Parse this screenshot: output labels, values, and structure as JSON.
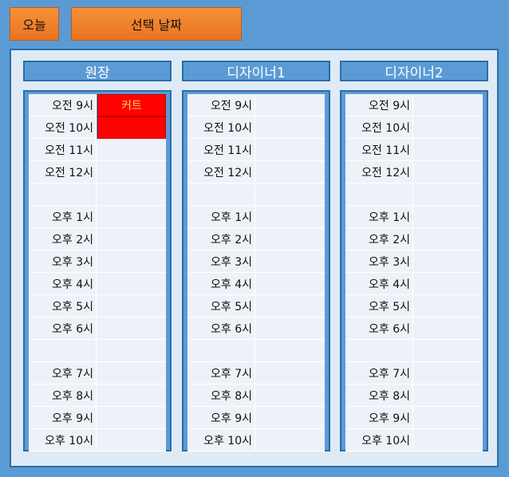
{
  "toolbar": {
    "today_label": "오늘",
    "select_date_label": "선택 날짜"
  },
  "columns": [
    {
      "header": "원장"
    },
    {
      "header": "디자이너1"
    },
    {
      "header": "디자이너2"
    }
  ],
  "time_slots": [
    "오전 9시",
    "오전 10시",
    "오전 11시",
    "오전 12시",
    "",
    "오후 1시",
    "오후 2시",
    "오후 3시",
    "오후 4시",
    "오후 5시",
    "오후 6시",
    "",
    "오후 7시",
    "오후 8시",
    "오후 9시",
    "오후 10시"
  ],
  "bookings": {
    "0": {
      "0": "커트",
      "1": ""
    }
  },
  "colors": {
    "booking_bg": "#ff0000",
    "booking_text": "#ffd966",
    "accent": "#f5913a",
    "panel_border": "#2e6da4"
  }
}
